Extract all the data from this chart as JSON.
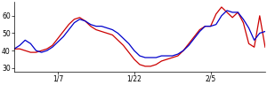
{
  "title": "",
  "xlim": [
    0,
    46
  ],
  "ylim": [
    28,
    68
  ],
  "yticks": [
    30,
    40,
    50,
    60
  ],
  "xtick_positions": [
    8,
    22,
    36
  ],
  "xtick_labels": [
    "1/7",
    "1/22",
    "2/5"
  ],
  "red_line": [
    41,
    41,
    40,
    39,
    39,
    40,
    41,
    43,
    47,
    51,
    55,
    58,
    59,
    57,
    54,
    52,
    51,
    50,
    49,
    46,
    43,
    39,
    35,
    32,
    31,
    31,
    32,
    34,
    35,
    36,
    37,
    40,
    44,
    48,
    52,
    54,
    54,
    61,
    65,
    62,
    59,
    62,
    56,
    44,
    42,
    60,
    42
  ],
  "blue_line": [
    41,
    43,
    46,
    44,
    40,
    39,
    40,
    42,
    45,
    48,
    52,
    56,
    58,
    57,
    55,
    54,
    54,
    53,
    52,
    50,
    47,
    44,
    40,
    37,
    36,
    36,
    36,
    37,
    37,
    37,
    38,
    40,
    43,
    47,
    51,
    54,
    54,
    55,
    60,
    63,
    62,
    62,
    58,
    53,
    46,
    50,
    51
  ],
  "red_color": "#cc0000",
  "blue_color": "#0000cc",
  "bg_color": "#ffffff",
  "linewidth": 0.9
}
